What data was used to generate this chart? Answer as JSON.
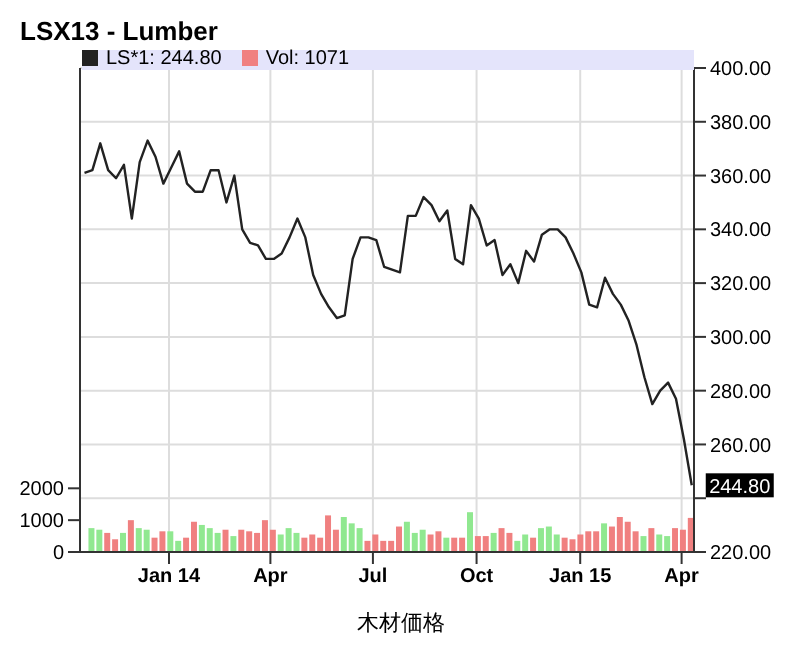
{
  "chart_data": {
    "type": "line",
    "title": "LSX13 - Lumber",
    "annotations": [
      {
        "text": "244.80",
        "x": "2015-04-10",
        "y": 244.8
      },
      "木材価格"
    ],
    "x": [
      "2013-10-18",
      "2013-10-25",
      "2013-11-01",
      "2013-11-08",
      "2013-11-15",
      "2013-11-22",
      "2013-11-29",
      "2013-12-06",
      "2013-12-13",
      "2013-12-20",
      "2013-12-27",
      "2014-01-03",
      "2014-01-10",
      "2014-01-17",
      "2014-01-24",
      "2014-01-31",
      "2014-02-07",
      "2014-02-14",
      "2014-02-21",
      "2014-02-28",
      "2014-03-07",
      "2014-03-14",
      "2014-03-21",
      "2014-03-28",
      "2014-04-04",
      "2014-04-11",
      "2014-04-18",
      "2014-04-25",
      "2014-05-02",
      "2014-05-09",
      "2014-05-16",
      "2014-05-23",
      "2014-05-30",
      "2014-06-06",
      "2014-06-13",
      "2014-06-20",
      "2014-06-27",
      "2014-07-04",
      "2014-07-11",
      "2014-07-18",
      "2014-07-25",
      "2014-08-01",
      "2014-08-08",
      "2014-08-15",
      "2014-08-22",
      "2014-08-29",
      "2014-09-05",
      "2014-09-12",
      "2014-09-19",
      "2014-09-26",
      "2014-10-03",
      "2014-10-10",
      "2014-10-17",
      "2014-10-24",
      "2014-10-31",
      "2014-11-07",
      "2014-11-14",
      "2014-11-21",
      "2014-11-28",
      "2014-12-05",
      "2014-12-12",
      "2014-12-19",
      "2014-12-26",
      "2015-01-02",
      "2015-01-09",
      "2015-01-16",
      "2015-01-23",
      "2015-01-30",
      "2015-02-06",
      "2015-02-13",
      "2015-02-20",
      "2015-02-27",
      "2015-03-06",
      "2015-03-13",
      "2015-03-20",
      "2015-03-27",
      "2015-04-03",
      "2015-04-10"
    ],
    "series": [
      {
        "name": "LS*1: 244.80",
        "color": "#222222",
        "values": [
          361,
          362,
          372,
          362,
          359,
          364,
          344,
          365,
          373,
          367,
          357,
          363,
          369,
          357,
          354,
          354,
          362,
          362,
          350,
          360,
          340,
          335,
          334,
          329,
          329,
          331,
          337,
          344,
          337,
          323,
          316,
          311,
          307,
          308,
          329,
          337,
          337,
          336,
          326,
          325,
          324,
          345,
          345,
          352,
          349,
          343,
          347,
          329,
          327,
          349,
          344,
          334,
          336,
          323,
          327,
          320,
          332,
          328,
          338,
          340,
          340,
          337,
          331,
          324,
          312,
          311,
          322,
          316,
          312,
          306,
          297,
          285,
          275,
          280,
          283,
          277,
          262,
          244.8
        ]
      },
      {
        "name": "Vol: 1071",
        "type": "bar",
        "axis": "y2",
        "color": "#f08080",
        "values": [
          null,
          750,
          700,
          600,
          400,
          600,
          1000,
          750,
          700,
          450,
          650,
          650,
          350,
          450,
          950,
          850,
          750,
          600,
          700,
          500,
          700,
          650,
          600,
          1000,
          700,
          550,
          750,
          600,
          450,
          550,
          450,
          1150,
          700,
          1100,
          900,
          750,
          350,
          550,
          350,
          350,
          800,
          950,
          600,
          700,
          550,
          650,
          450,
          450,
          450,
          1250,
          500,
          500,
          600,
          750,
          600,
          350,
          550,
          450,
          750,
          800,
          550,
          450,
          400,
          550,
          650,
          650,
          900,
          800,
          1100,
          950,
          650,
          500,
          750,
          550,
          500,
          750,
          700,
          1071
        ],
        "colors": [
          "#f08080",
          "#90e890",
          "#90e890",
          "#f08080",
          "#f08080",
          "#90e890",
          "#f08080",
          "#90e890",
          "#90e890",
          "#f08080",
          "#f08080",
          "#90e890",
          "#90e890",
          "#f08080",
          "#f08080",
          "#90e890",
          "#90e890",
          "#90e890",
          "#f08080",
          "#90e890",
          "#f08080",
          "#f08080",
          "#f08080",
          "#f08080",
          "#f08080",
          "#90e890",
          "#90e890",
          "#90e890",
          "#f08080",
          "#f08080",
          "#f08080",
          "#f08080",
          "#f08080",
          "#90e890",
          "#90e890",
          "#90e890",
          "#f08080",
          "#f08080",
          "#f08080",
          "#f08080",
          "#f08080",
          "#90e890",
          "#90e890",
          "#90e890",
          "#f08080",
          "#f08080",
          "#90e890",
          "#f08080",
          "#f08080",
          "#90e890",
          "#f08080",
          "#f08080",
          "#90e890",
          "#f08080",
          "#f08080",
          "#90e890",
          "#90e890",
          "#f08080",
          "#90e890",
          "#90e890",
          "#90e890",
          "#f08080",
          "#f08080",
          "#f08080",
          "#f08080",
          "#f08080",
          "#90e890",
          "#f08080",
          "#f08080",
          "#f08080",
          "#f08080",
          "#90e890",
          "#f08080",
          "#90e890",
          "#90e890",
          "#f08080",
          "#f08080",
          "#f08080"
        ]
      }
    ],
    "xlim": [
      "2013-10-14",
      "2015-04-12"
    ],
    "xticks": [
      {
        "value": "2014-01-01",
        "label": "Jan 14"
      },
      {
        "value": "2014-04-01",
        "label": "Apr"
      },
      {
        "value": "2014-07-01",
        "label": "Jul"
      },
      {
        "value": "2014-10-01",
        "label": "Oct"
      },
      {
        "value": "2015-01-01",
        "label": "Jan 15"
      },
      {
        "value": "2015-04-01",
        "label": "Apr"
      }
    ],
    "ylim": [
      220,
      400
    ],
    "yticks": [
      {
        "value": 220,
        "label": "220.00"
      },
      {
        "value": 240,
        "label": null
      },
      {
        "value": 260,
        "label": "260.00"
      },
      {
        "value": 280,
        "label": "280.00"
      },
      {
        "value": 300,
        "label": "300.00"
      },
      {
        "value": 320,
        "label": "320.00"
      },
      {
        "value": 340,
        "label": "340.00"
      },
      {
        "value": 360,
        "label": "360.00"
      },
      {
        "value": 380,
        "label": "380.00"
      },
      {
        "value": 400,
        "label": "400.00"
      }
    ],
    "y2lim": [
      0,
      15200
    ],
    "y2ticks": [
      0,
      1000,
      2000
    ],
    "grid": true,
    "legend": "top left",
    "marker": "none",
    "line_style": "solid"
  }
}
